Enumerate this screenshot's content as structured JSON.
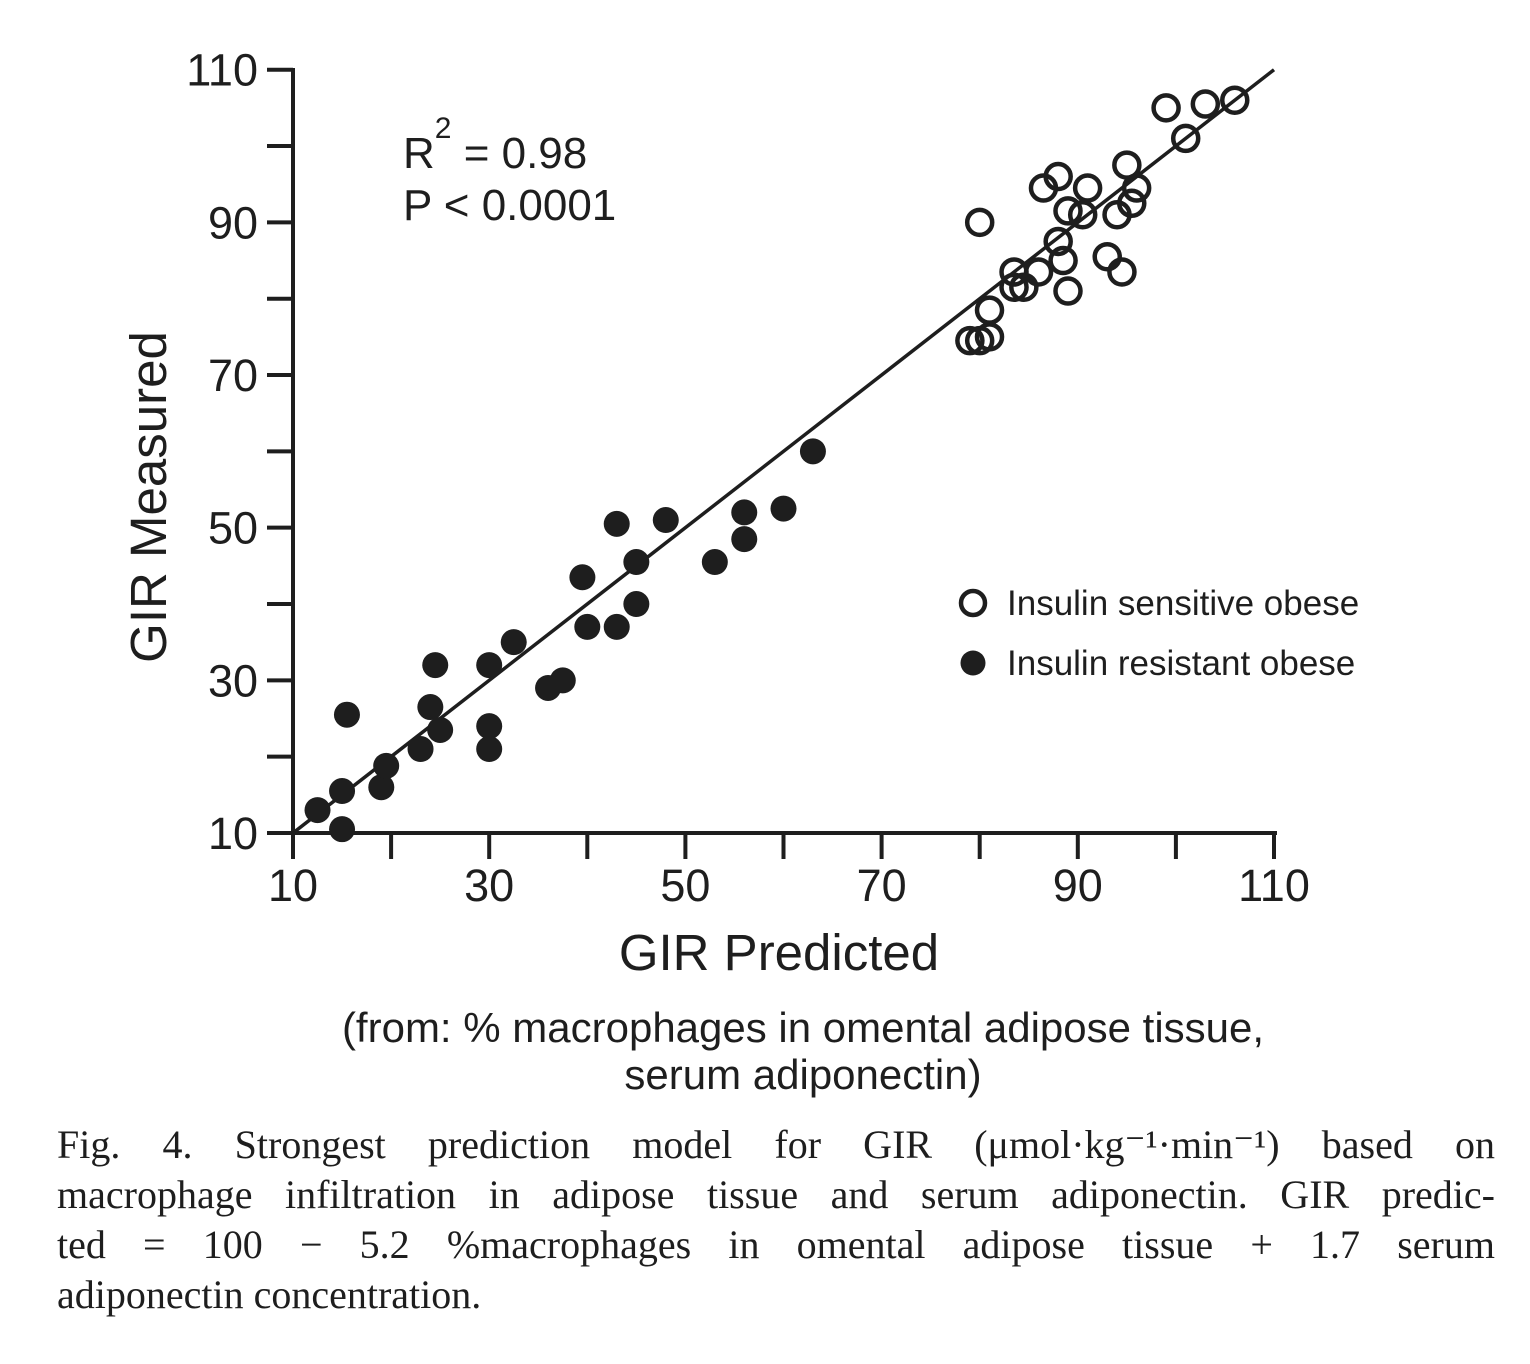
{
  "colors": {
    "ink": "#1e1e1e",
    "background": "#ffffff"
  },
  "figure": {
    "annotation": {
      "r2_base": "R",
      "r2_sup": "2",
      "r2_eq": " = 0.98",
      "p_line": "P < 0.0001"
    },
    "caption_lines": [
      "Fig. 4. Strongest prediction model for GIR (μmol·kg⁻¹·min⁻¹) based on",
      "macrophage infiltration in adipose tissue and serum adiponectin. GIR predic-",
      "ted = 100 − 5.2 %macrophages in omental adipose tissue + 1.7 serum",
      "adiponectin concentration."
    ]
  },
  "chart_data": {
    "type": "scatter",
    "title": "",
    "xlabel": "GIR Predicted",
    "xlabel_note_lines": [
      "(from: % macrophages in omental adipose tissue,",
      "serum adiponectin)"
    ],
    "ylabel": "GIR Measured",
    "xlim": [
      10,
      110
    ],
    "ylim": [
      10,
      110
    ],
    "tick_step": 10,
    "x_label_ticks": [
      10,
      30,
      50,
      70,
      90,
      110
    ],
    "y_label_ticks": [
      10,
      30,
      50,
      70,
      90,
      110
    ],
    "grid": false,
    "legend_position": "right-middle",
    "stats": {
      "r_squared": 0.98,
      "p": "< 0.0001"
    },
    "regression_line": {
      "x1": 10,
      "y1": 10,
      "x2": 110,
      "y2": 110
    },
    "series": [
      {
        "name": "Insulin sensitive obese",
        "marker": "open-circle",
        "points": [
          [
            80,
            90
          ],
          [
            79,
            74.5
          ],
          [
            80,
            74.5
          ],
          [
            81,
            75
          ],
          [
            81,
            78.5
          ],
          [
            83.5,
            83.5
          ],
          [
            86,
            83.5
          ],
          [
            83.5,
            81.5
          ],
          [
            84.5,
            81.5
          ],
          [
            89,
            81
          ],
          [
            88.5,
            85
          ],
          [
            93,
            85.5
          ],
          [
            94.5,
            83.5
          ],
          [
            88,
            87.5
          ],
          [
            89,
            91.5
          ],
          [
            90.5,
            91
          ],
          [
            94,
            91
          ],
          [
            95.5,
            92.5
          ],
          [
            86.5,
            94.5
          ],
          [
            88,
            96
          ],
          [
            91,
            94.5
          ],
          [
            96,
            94.5
          ],
          [
            95,
            97.5
          ],
          [
            101,
            101
          ],
          [
            99,
            105
          ],
          [
            103,
            105.5
          ],
          [
            106,
            106
          ]
        ]
      },
      {
        "name": "Insulin resistant obese",
        "marker": "filled-circle",
        "points": [
          [
            12.5,
            13
          ],
          [
            15,
            10.5
          ],
          [
            15,
            15.5
          ],
          [
            19,
            16
          ],
          [
            19.5,
            18.8
          ],
          [
            15.5,
            25.5
          ],
          [
            23,
            21
          ],
          [
            25,
            23.5
          ],
          [
            24,
            26.5
          ],
          [
            24.5,
            32
          ],
          [
            30,
            32
          ],
          [
            32.5,
            35
          ],
          [
            30,
            24
          ],
          [
            30,
            21
          ],
          [
            36,
            29
          ],
          [
            37.5,
            30
          ],
          [
            40,
            37
          ],
          [
            43,
            37
          ],
          [
            39.5,
            43.5
          ],
          [
            45,
            40
          ],
          [
            43,
            50.5
          ],
          [
            45,
            45.5
          ],
          [
            48,
            51
          ],
          [
            53,
            45.5
          ],
          [
            56,
            48.5
          ],
          [
            56,
            52
          ],
          [
            60,
            52.5
          ],
          [
            63,
            60
          ]
        ]
      }
    ]
  }
}
